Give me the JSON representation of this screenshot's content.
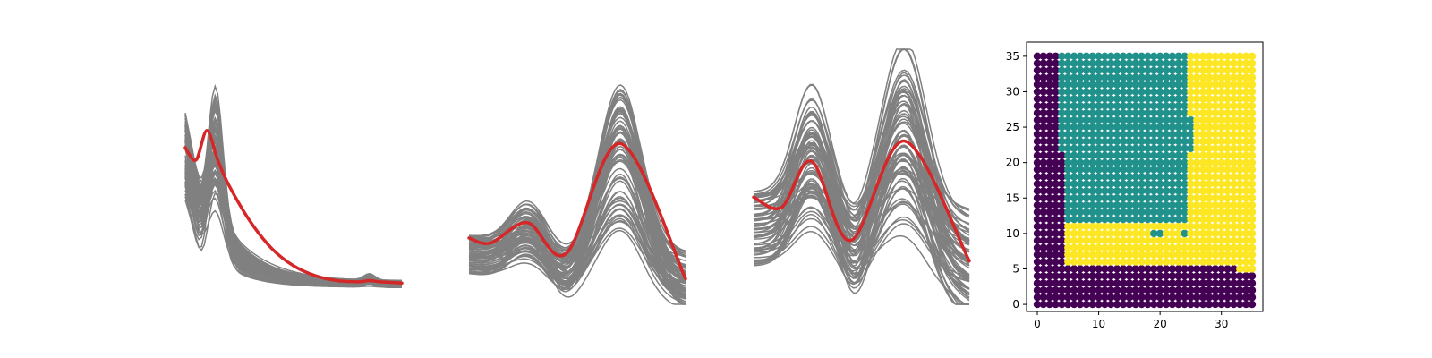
{
  "figure": {
    "colors": {
      "background": "#ffffff",
      "sample_curve": "#808080",
      "mean_curve": "#d62728",
      "axes": "#000000"
    }
  },
  "chart_data": [
    {
      "type": "line",
      "panel": "curves-1",
      "axes_visible": false,
      "series": [
        {
          "role": "samples",
          "color": "#808080",
          "count_visible": "many"
        },
        {
          "role": "mean",
          "color": "#d62728",
          "x": [
            0,
            0.05,
            0.1,
            0.15,
            0.2,
            0.3,
            0.4,
            0.5,
            0.6,
            0.7,
            0.8,
            0.85,
            0.9,
            1.0
          ],
          "y": [
            0.6,
            0.55,
            0.67,
            0.55,
            0.45,
            0.3,
            0.19,
            0.12,
            0.08,
            0.06,
            0.055,
            0.06,
            0.055,
            0.05
          ]
        }
      ]
    },
    {
      "type": "line",
      "panel": "curves-2",
      "axes_visible": false,
      "series": [
        {
          "role": "samples",
          "color": "#808080",
          "count_visible": "many"
        },
        {
          "role": "mean",
          "color": "#d62728",
          "x": [
            0,
            0.1,
            0.27,
            0.45,
            0.7,
            1.0
          ],
          "y": [
            0.26,
            0.24,
            0.32,
            0.2,
            0.63,
            0.1
          ]
        }
      ]
    },
    {
      "type": "line",
      "panel": "curves-3",
      "axes_visible": false,
      "series": [
        {
          "role": "samples",
          "color": "#808080",
          "count_visible": "many"
        },
        {
          "role": "mean",
          "color": "#d62728",
          "x": [
            0,
            0.13,
            0.27,
            0.45,
            0.7,
            1.0
          ],
          "y": [
            0.42,
            0.38,
            0.56,
            0.25,
            0.64,
            0.17
          ]
        }
      ]
    },
    {
      "type": "scatter",
      "panel": "grid-map",
      "grid_size": 36,
      "xlim": [
        -1.75,
        36.75
      ],
      "ylim": [
        -1,
        37
      ],
      "x_ticks": [
        0,
        10,
        20,
        30
      ],
      "y_ticks": [
        0,
        5,
        10,
        15,
        20,
        25,
        30,
        35
      ],
      "class_colors": {
        "0": "#440154",
        "1": "#21918c",
        "2": "#fde725"
      },
      "regions": [
        {
          "class": 0,
          "rule": "rows 0-5 all columns, columns 0-3 all rows (default)"
        },
        {
          "class": 1,
          "rule": "rows 12-35 within columns 5-24 (upper teal block)"
        },
        {
          "class": 2,
          "rule": "columns 25-35 rows 6-35, plus rows 6-11 columns 5-24"
        }
      ]
    }
  ]
}
